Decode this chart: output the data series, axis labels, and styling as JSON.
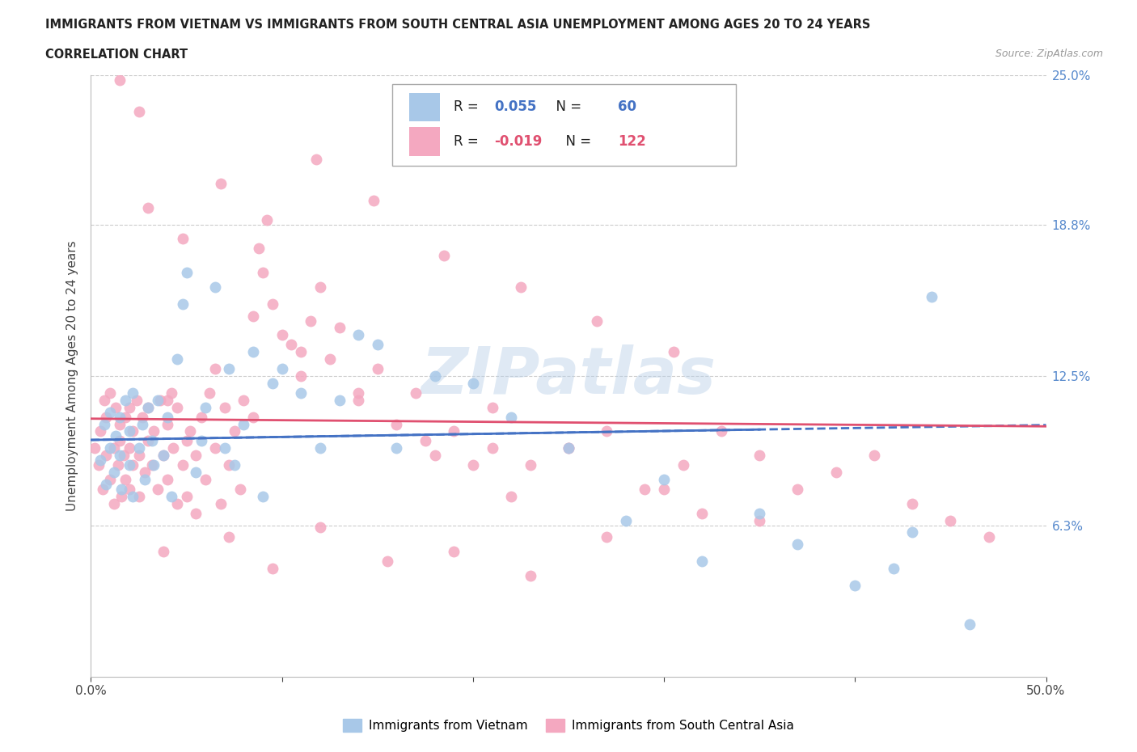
{
  "title_line1": "IMMIGRANTS FROM VIETNAM VS IMMIGRANTS FROM SOUTH CENTRAL ASIA UNEMPLOYMENT AMONG AGES 20 TO 24 YEARS",
  "title_line2": "CORRELATION CHART",
  "source_text": "Source: ZipAtlas.com",
  "ylabel": "Unemployment Among Ages 20 to 24 years",
  "xlim": [
    0.0,
    0.5
  ],
  "ylim": [
    0.0,
    0.25
  ],
  "ytick_labels": [
    "6.3%",
    "12.5%",
    "18.8%",
    "25.0%"
  ],
  "ytick_values": [
    0.063,
    0.125,
    0.188,
    0.25
  ],
  "color_vietnam": "#a8c8e8",
  "color_sca": "#f4a8c0",
  "trendline_color_vietnam": "#4472c4",
  "trendline_color_sca": "#e05070",
  "R_vietnam": 0.055,
  "N_vietnam": 60,
  "R_sca": -0.019,
  "N_sca": 122,
  "watermark": "ZIPatlas",
  "legend_label_vietnam": "Immigrants from Vietnam",
  "legend_label_sca": "Immigrants from South Central Asia",
  "scatter_vietnam_x": [
    0.005,
    0.007,
    0.008,
    0.01,
    0.01,
    0.012,
    0.013,
    0.015,
    0.015,
    0.016,
    0.018,
    0.02,
    0.02,
    0.022,
    0.022,
    0.025,
    0.027,
    0.028,
    0.03,
    0.032,
    0.033,
    0.035,
    0.038,
    0.04,
    0.042,
    0.045,
    0.048,
    0.05,
    0.055,
    0.058,
    0.06,
    0.065,
    0.07,
    0.072,
    0.075,
    0.08,
    0.085,
    0.09,
    0.095,
    0.1,
    0.11,
    0.12,
    0.13,
    0.14,
    0.15,
    0.16,
    0.18,
    0.2,
    0.22,
    0.25,
    0.28,
    0.3,
    0.32,
    0.35,
    0.37,
    0.4,
    0.42,
    0.43,
    0.44,
    0.46
  ],
  "scatter_vietnam_y": [
    0.09,
    0.105,
    0.08,
    0.095,
    0.11,
    0.085,
    0.1,
    0.092,
    0.108,
    0.078,
    0.115,
    0.088,
    0.102,
    0.075,
    0.118,
    0.095,
    0.105,
    0.082,
    0.112,
    0.098,
    0.088,
    0.115,
    0.092,
    0.108,
    0.075,
    0.132,
    0.155,
    0.168,
    0.085,
    0.098,
    0.112,
    0.162,
    0.095,
    0.128,
    0.088,
    0.105,
    0.135,
    0.075,
    0.122,
    0.128,
    0.118,
    0.095,
    0.115,
    0.142,
    0.138,
    0.095,
    0.125,
    0.122,
    0.108,
    0.095,
    0.065,
    0.082,
    0.048,
    0.068,
    0.055,
    0.038,
    0.045,
    0.06,
    0.158,
    0.022
  ],
  "scatter_sca_x": [
    0.002,
    0.004,
    0.005,
    0.006,
    0.007,
    0.008,
    0.008,
    0.01,
    0.01,
    0.012,
    0.012,
    0.013,
    0.014,
    0.015,
    0.015,
    0.016,
    0.017,
    0.018,
    0.018,
    0.02,
    0.02,
    0.02,
    0.022,
    0.022,
    0.024,
    0.025,
    0.025,
    0.027,
    0.028,
    0.03,
    0.03,
    0.032,
    0.033,
    0.035,
    0.036,
    0.038,
    0.04,
    0.04,
    0.042,
    0.043,
    0.045,
    0.045,
    0.048,
    0.05,
    0.05,
    0.052,
    0.055,
    0.058,
    0.06,
    0.062,
    0.065,
    0.068,
    0.07,
    0.072,
    0.075,
    0.078,
    0.08,
    0.085,
    0.088,
    0.09,
    0.095,
    0.1,
    0.105,
    0.11,
    0.115,
    0.12,
    0.125,
    0.13,
    0.14,
    0.15,
    0.16,
    0.17,
    0.18,
    0.19,
    0.2,
    0.21,
    0.22,
    0.23,
    0.25,
    0.27,
    0.29,
    0.31,
    0.33,
    0.35,
    0.37,
    0.39,
    0.41,
    0.43,
    0.45,
    0.47,
    0.04,
    0.065,
    0.085,
    0.11,
    0.14,
    0.175,
    0.21,
    0.25,
    0.3,
    0.35,
    0.038,
    0.055,
    0.072,
    0.095,
    0.12,
    0.155,
    0.19,
    0.23,
    0.27,
    0.32,
    0.03,
    0.048,
    0.068,
    0.092,
    0.118,
    0.148,
    0.185,
    0.225,
    0.265,
    0.305,
    0.015,
    0.025
  ],
  "scatter_sca_y": [
    0.095,
    0.088,
    0.102,
    0.078,
    0.115,
    0.092,
    0.108,
    0.082,
    0.118,
    0.095,
    0.072,
    0.112,
    0.088,
    0.098,
    0.105,
    0.075,
    0.092,
    0.108,
    0.082,
    0.095,
    0.112,
    0.078,
    0.102,
    0.088,
    0.115,
    0.092,
    0.075,
    0.108,
    0.085,
    0.098,
    0.112,
    0.088,
    0.102,
    0.078,
    0.115,
    0.092,
    0.105,
    0.082,
    0.118,
    0.095,
    0.072,
    0.112,
    0.088,
    0.098,
    0.075,
    0.102,
    0.092,
    0.108,
    0.082,
    0.118,
    0.095,
    0.072,
    0.112,
    0.088,
    0.102,
    0.078,
    0.115,
    0.15,
    0.178,
    0.168,
    0.155,
    0.142,
    0.138,
    0.125,
    0.148,
    0.162,
    0.132,
    0.145,
    0.115,
    0.128,
    0.105,
    0.118,
    0.092,
    0.102,
    0.088,
    0.095,
    0.075,
    0.088,
    0.095,
    0.102,
    0.078,
    0.088,
    0.102,
    0.092,
    0.078,
    0.085,
    0.092,
    0.072,
    0.065,
    0.058,
    0.115,
    0.128,
    0.108,
    0.135,
    0.118,
    0.098,
    0.112,
    0.095,
    0.078,
    0.065,
    0.052,
    0.068,
    0.058,
    0.045,
    0.062,
    0.048,
    0.052,
    0.042,
    0.058,
    0.068,
    0.195,
    0.182,
    0.205,
    0.19,
    0.215,
    0.198,
    0.175,
    0.162,
    0.148,
    0.135,
    0.248,
    0.235
  ]
}
